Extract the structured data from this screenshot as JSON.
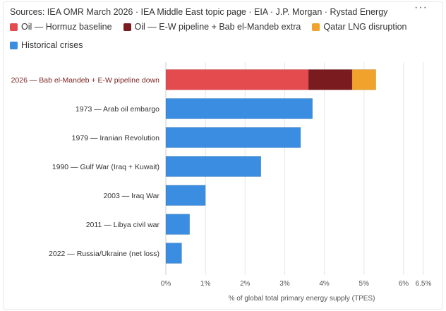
{
  "sources": "Sources: IEA OMR March 2026 · IEA Middle East topic page · EIA · J.P. Morgan · Rystad Energy",
  "menu_icon": "more-dots-icon",
  "menu_glyph": "···",
  "legend": [
    {
      "label": "Oil — Hormuz baseline",
      "color": "#e34b4f"
    },
    {
      "label": "Oil — E-W pipeline + Bab el-Mandeb extra",
      "color": "#7a1b1f"
    },
    {
      "label": "Qatar LNG disruption",
      "color": "#f0a22c"
    },
    {
      "label": "Historical crises",
      "color": "#3a8de0"
    }
  ],
  "chart_data": {
    "type": "bar",
    "orientation": "horizontal",
    "stacked": true,
    "categories": [
      "2026 — Bab el-Mandeb + E-W pipeline down",
      "1973 — Arab oil embargo",
      "1979 — Iranian Revolution",
      "1990 — Gulf War (Iraq + Kuwait)",
      "2003 — Iraq War",
      "2011 — Libya civil war",
      "2022 — Russia/Ukraine (net loss)"
    ],
    "highlight_category": 0,
    "series": [
      {
        "name": "Oil — Hormuz baseline",
        "color": "#e34b4f",
        "values": [
          3.6,
          0,
          0,
          0,
          0,
          0,
          0
        ]
      },
      {
        "name": "Oil — E-W pipeline + Bab el-Mandeb extra",
        "color": "#7a1b1f",
        "values": [
          1.1,
          0,
          0,
          0,
          0,
          0,
          0
        ]
      },
      {
        "name": "Qatar LNG disruption",
        "color": "#f0a22c",
        "values": [
          0.6,
          0,
          0,
          0,
          0,
          0,
          0
        ]
      },
      {
        "name": "Historical crises",
        "color": "#3a8de0",
        "values": [
          0,
          3.7,
          3.4,
          2.4,
          1.0,
          0.6,
          0.4
        ]
      }
    ],
    "xlim": [
      0,
      6.5
    ],
    "xticks": [
      0,
      1,
      2,
      3,
      4,
      5,
      6,
      6.5
    ],
    "xtick_labels": [
      "0%",
      "1%",
      "2%",
      "3%",
      "4%",
      "5%",
      "6%",
      "6.5%"
    ],
    "xlabel": "% of global total primary energy supply (TPES)",
    "ylabel": "",
    "grid": "vertical",
    "legend_position": "top"
  }
}
